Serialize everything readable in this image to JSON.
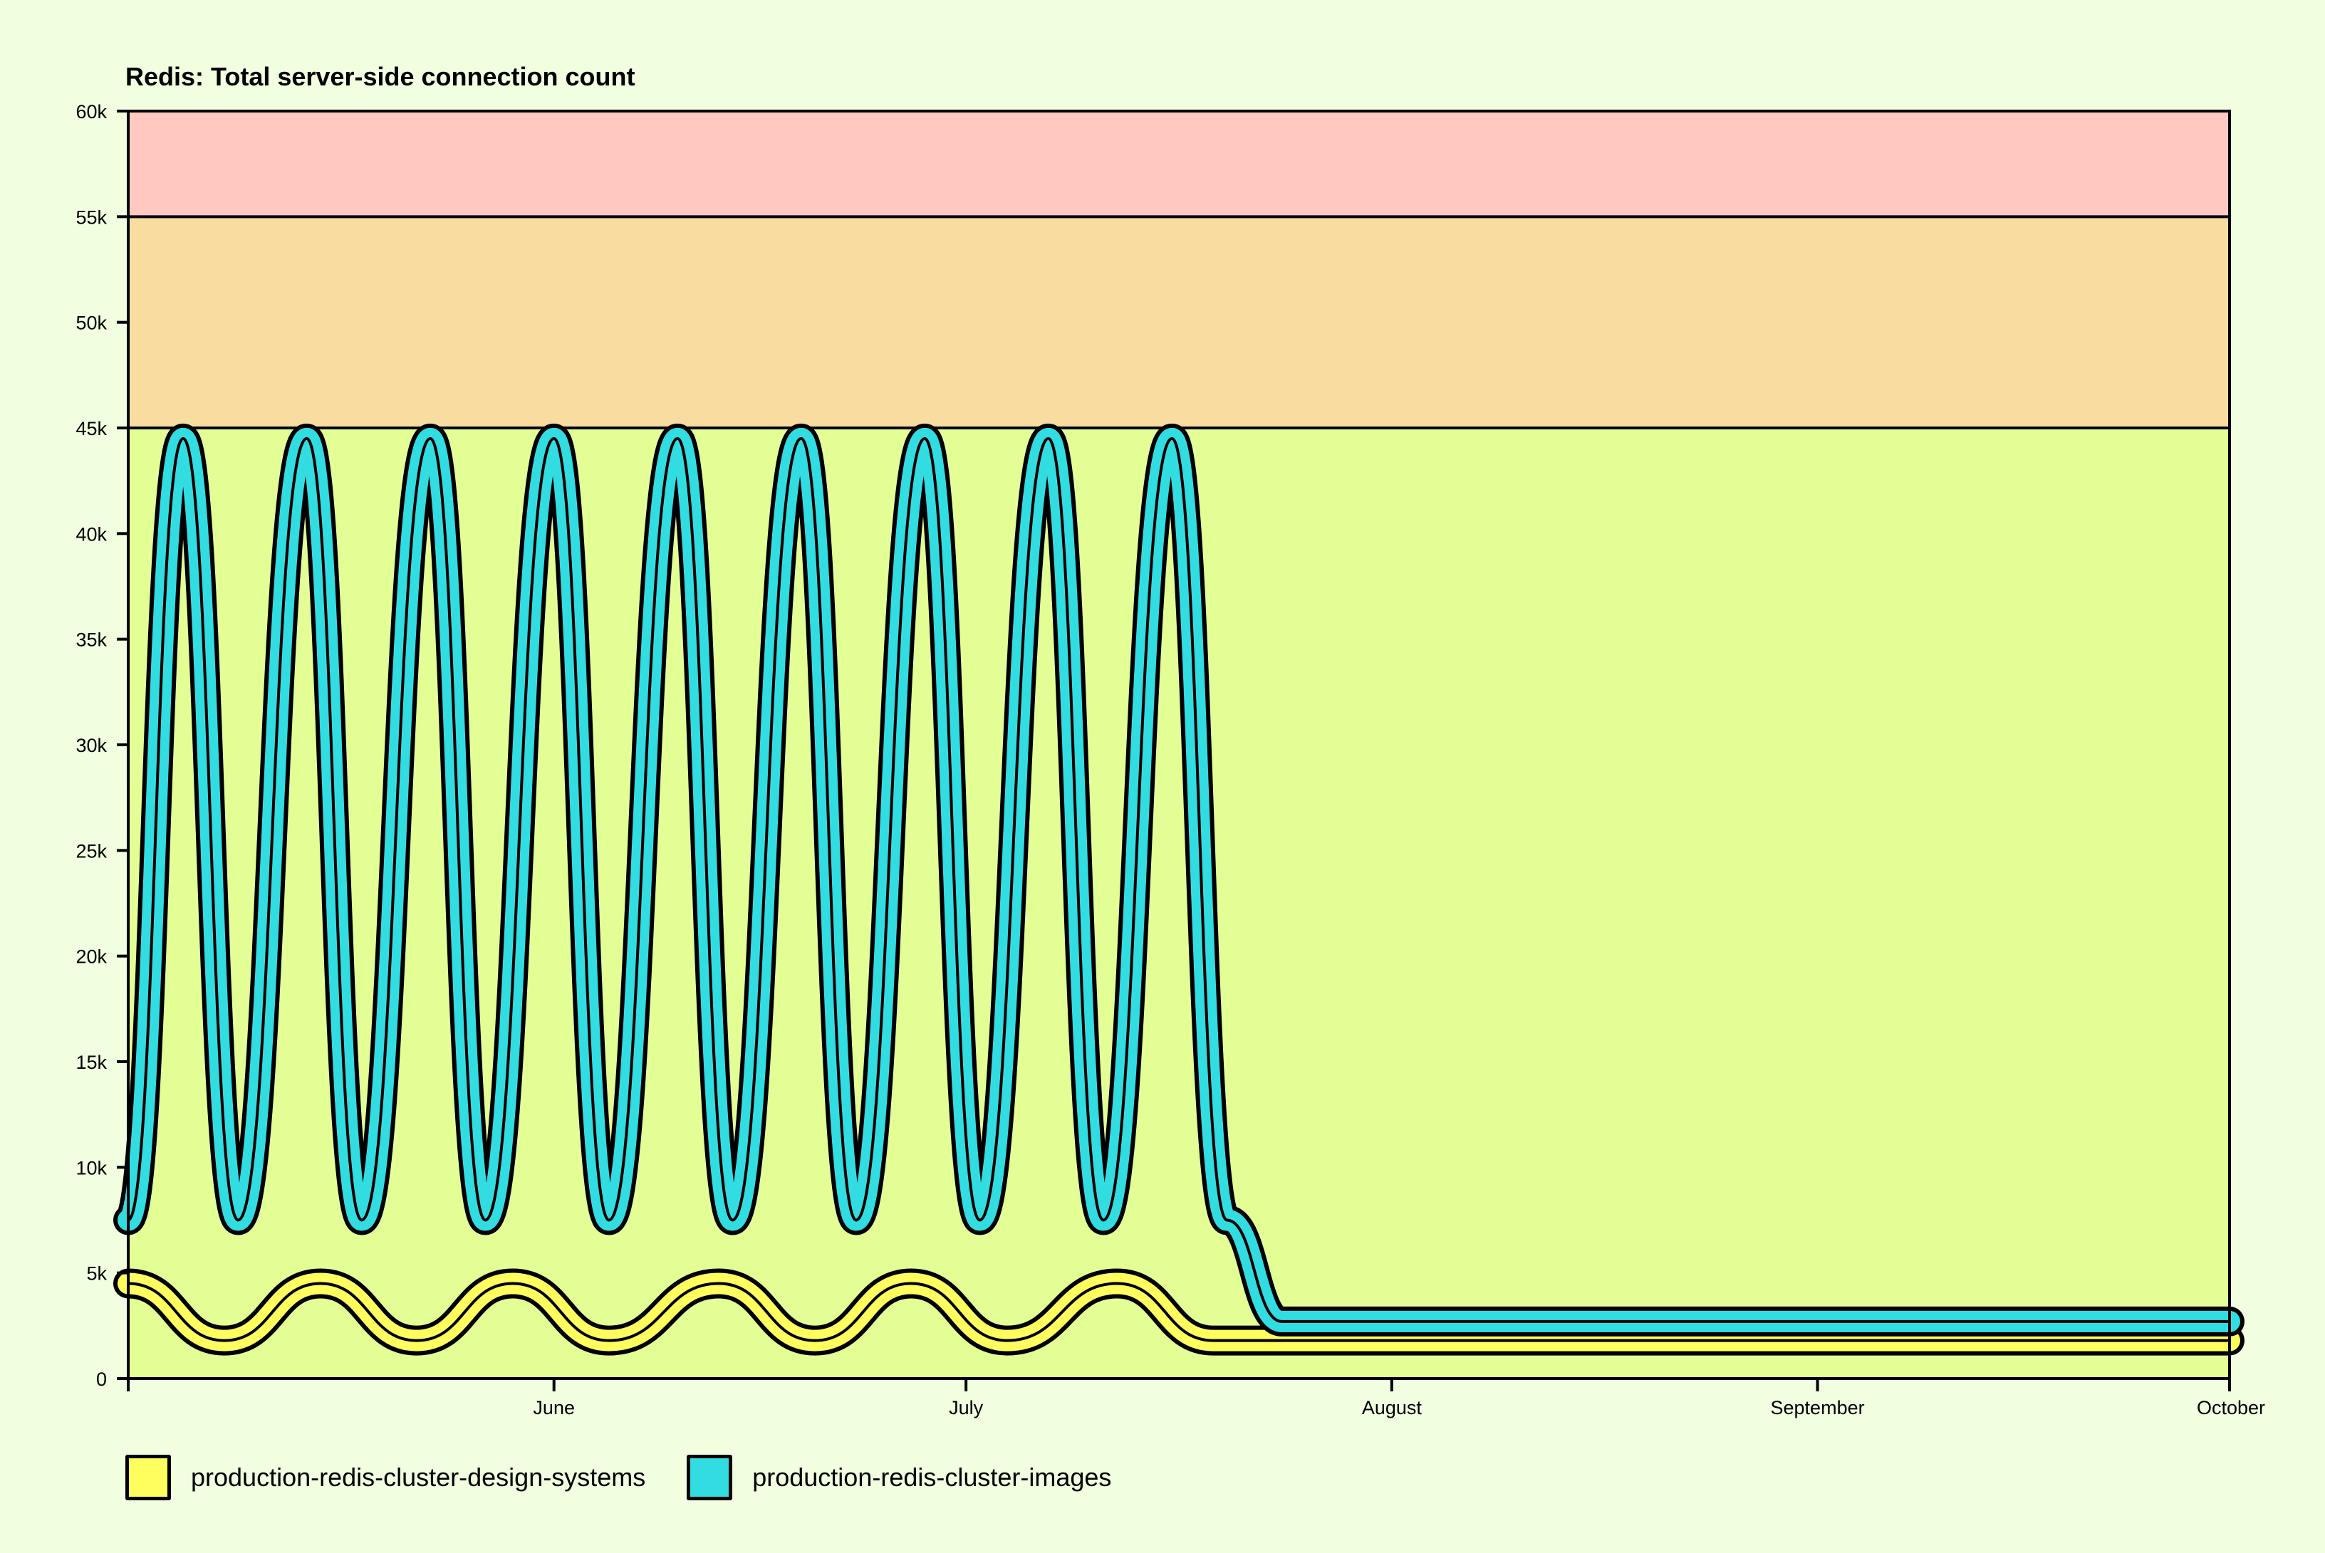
{
  "chart_data": {
    "type": "line",
    "title": "Redis: Total server-side connection count",
    "xlabel": "",
    "ylabel": "",
    "ylim": [
      0,
      60000
    ],
    "y_ticks": [
      {
        "value": 0,
        "label": "0"
      },
      {
        "value": 5000,
        "label": "5k"
      },
      {
        "value": 10000,
        "label": "10k"
      },
      {
        "value": 15000,
        "label": "15k"
      },
      {
        "value": 20000,
        "label": "20k"
      },
      {
        "value": 25000,
        "label": "25k"
      },
      {
        "value": 30000,
        "label": "30k"
      },
      {
        "value": 35000,
        "label": "35k"
      },
      {
        "value": 40000,
        "label": "40k"
      },
      {
        "value": 45000,
        "label": "45k"
      },
      {
        "value": 50000,
        "label": "50k"
      },
      {
        "value": 55000,
        "label": "55k"
      },
      {
        "value": 60000,
        "label": "60k"
      }
    ],
    "xlim": [
      "2025-05-01",
      "2025-10-01"
    ],
    "x_ticks": [
      {
        "date": "2025-06-01",
        "label": "June"
      },
      {
        "date": "2025-07-01",
        "label": "July"
      },
      {
        "date": "2025-08-01",
        "label": "August"
      },
      {
        "date": "2025-09-01",
        "label": "September"
      },
      {
        "date": "2025-10-01",
        "label": "October"
      }
    ],
    "threshold_bands": [
      {
        "from": 0,
        "to": 45000,
        "color": "#e4fe96"
      },
      {
        "from": 45000,
        "to": 55000,
        "color": "#f9dca0"
      },
      {
        "from": 55000,
        "to": 60000,
        "color": "#ffc8c1"
      }
    ],
    "series": [
      {
        "name": "production-redis-cluster-design-systems",
        "color": "#fffe5f",
        "points": [
          [
            "2025-05-01",
            4500
          ],
          [
            "2025-05-08",
            1800
          ],
          [
            "2025-05-15",
            4500
          ],
          [
            "2025-05-22",
            1800
          ],
          [
            "2025-05-29",
            4500
          ],
          [
            "2025-06-05",
            1800
          ],
          [
            "2025-06-13",
            4500
          ],
          [
            "2025-06-20",
            1800
          ],
          [
            "2025-06-27",
            4500
          ],
          [
            "2025-07-04",
            1800
          ],
          [
            "2025-07-12",
            4500
          ],
          [
            "2025-07-19",
            1800
          ],
          [
            "2025-10-01",
            1800
          ]
        ]
      },
      {
        "name": "production-redis-cluster-images",
        "color": "#32dde2",
        "points": [
          [
            "2025-05-01",
            7500
          ],
          [
            "2025-05-05",
            44500
          ],
          [
            "2025-05-09",
            7500
          ],
          [
            "2025-05-14",
            44500
          ],
          [
            "2025-05-18",
            7500
          ],
          [
            "2025-05-23",
            44500
          ],
          [
            "2025-05-27",
            7500
          ],
          [
            "2025-06-01",
            44500
          ],
          [
            "2025-06-05",
            7500
          ],
          [
            "2025-06-10",
            44500
          ],
          [
            "2025-06-14",
            7500
          ],
          [
            "2025-06-19",
            44500
          ],
          [
            "2025-06-23",
            7500
          ],
          [
            "2025-06-28",
            44500
          ],
          [
            "2025-07-02",
            7500
          ],
          [
            "2025-07-07",
            44500
          ],
          [
            "2025-07-11",
            7500
          ],
          [
            "2025-07-16",
            44500
          ],
          [
            "2025-07-20",
            7500
          ],
          [
            "2025-07-24",
            2700
          ],
          [
            "2025-10-01",
            2700
          ]
        ]
      }
    ]
  }
}
